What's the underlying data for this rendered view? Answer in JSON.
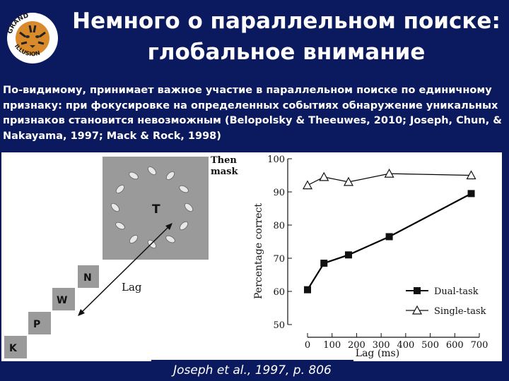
{
  "slide": {
    "title_line1": "Немного о параллельном поиске:",
    "title_line2": "глобальное внимание",
    "body": "По-видимому, принимает важное участие в параллельном поиске по единичному признаку: при фокусировке на определенных событиях обнаружение уникальных признаков становится невозможным (Belopolsky & Theeuwes, 2010; Joseph, Chun, & Nakayama, 1997; Mack & Rock, 1998)",
    "caption": "Joseph et al., 1997, p. 806"
  },
  "logo": {
    "text_top": "GRAND",
    "text_bottom": "ILLUSION"
  },
  "stimulus": {
    "target_letter": "T",
    "mask_label_line1": "Then",
    "mask_label_line2": "mask",
    "stream_letters": [
      "N",
      "W",
      "P",
      "K"
    ],
    "lag_label": "Lag"
  },
  "chart_data": {
    "type": "line",
    "xlabel": "Lag (ms)",
    "ylabel": "Percentage correct",
    "xlim": [
      0,
      700
    ],
    "ylim": [
      50,
      100
    ],
    "x_ticks": [
      0,
      100,
      200,
      300,
      400,
      500,
      600,
      700
    ],
    "y_ticks": [
      50,
      60,
      70,
      80,
      90,
      100
    ],
    "legend_position": "bottom-right",
    "series": [
      {
        "name": "Dual-task",
        "marker": "square",
        "color": "#000000",
        "x": [
          0,
          67,
          167,
          333,
          667
        ],
        "y": [
          60.5,
          68.5,
          71,
          76.5,
          89.5
        ]
      },
      {
        "name": "Single-task",
        "marker": "triangle",
        "color": "#000000",
        "x": [
          0,
          67,
          167,
          333,
          667
        ],
        "y": [
          92,
          94.5,
          93,
          95.5,
          95
        ]
      }
    ]
  },
  "colors": {
    "background": "#0b1a5e",
    "text": "#ffffff",
    "stimulus_gray": "#9a9a9a"
  }
}
